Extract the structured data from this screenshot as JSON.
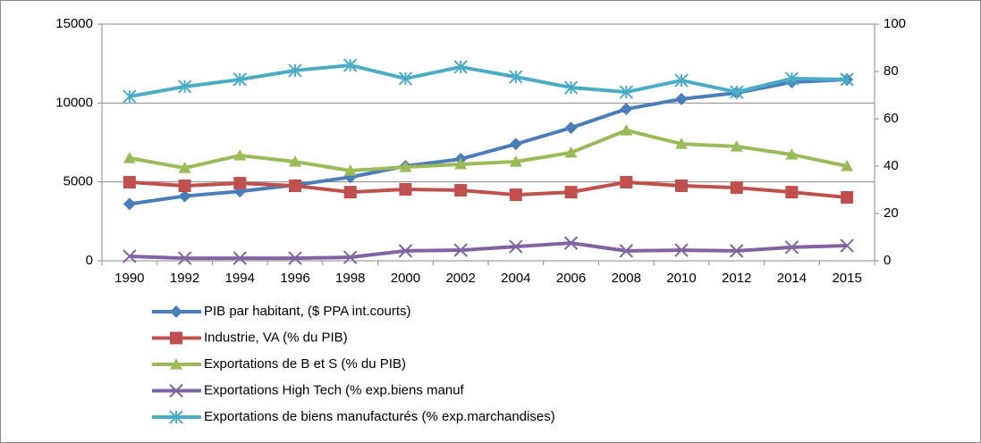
{
  "chart_data": {
    "type": "line",
    "categories": [
      "1990",
      "1992",
      "1994",
      "1996",
      "1998",
      "2000",
      "2002",
      "2004",
      "2006",
      "2008",
      "2010",
      "2012",
      "2014",
      "2015"
    ],
    "ylim": [
      0,
      15000
    ],
    "yticks": [
      0,
      5000,
      10000,
      15000
    ],
    "y2lim": [
      0,
      100
    ],
    "y2ticks": [
      0,
      20,
      40,
      60,
      80,
      100
    ],
    "grid": true,
    "legend": "bottom",
    "series": [
      {
        "name": "PIB par habitant, ($ PPA int.courts)",
        "color": "#4a7ebb",
        "marker": "diamond",
        "values": [
          3600,
          4100,
          4400,
          4800,
          5300,
          6000,
          6450,
          7400,
          8430,
          9620,
          10250,
          10640,
          11320,
          11490
        ]
      },
      {
        "name": "Industrie, VA (% du PIB)",
        "color": "#c0504d",
        "marker": "square",
        "axis": "y2",
        "values": [
          33.2,
          31.7,
          32.8,
          31.7,
          29,
          30.2,
          29.8,
          27.9,
          29,
          33.2,
          31.7,
          30.9,
          29,
          26.8
        ]
      },
      {
        "name": "Exportations de B et S (% du PIB)",
        "color": "#9bbb59",
        "marker": "triangle",
        "axis": "y2",
        "values": [
          43.4,
          39.2,
          44.5,
          41.9,
          38.1,
          39.6,
          40.8,
          41.9,
          45.7,
          55.1,
          49.4,
          48.3,
          44.9,
          40
        ]
      },
      {
        "name": "Exportations High Tech (%  exp.biens manuf",
        "color": "#8064a2",
        "marker": "x",
        "axis": "y2",
        "values": [
          1.9,
          1.1,
          1.1,
          1.1,
          1.5,
          4.2,
          4.5,
          6,
          7.5,
          4.2,
          4.5,
          4.2,
          5.7,
          6.4
        ]
      },
      {
        "name": "Exportations de biens manufacturés (%  exp.marchandises)",
        "color": "#4bacc6",
        "marker": "star",
        "axis": "y2",
        "values": [
          69.4,
          73.6,
          76.6,
          80.4,
          82.6,
          77,
          81.9,
          77.7,
          73.2,
          71.3,
          76.2,
          71.3,
          77,
          76.6
        ]
      }
    ]
  }
}
